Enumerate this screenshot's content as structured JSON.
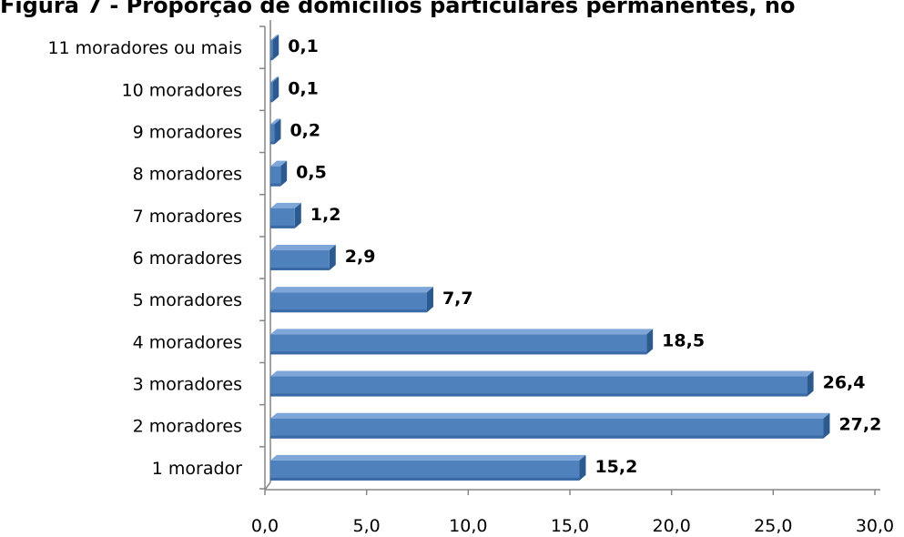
{
  "chart_data": {
    "type": "bar",
    "orientation": "horizontal",
    "title": "Figura 7 - Proporção de domicílios particulares permanentes, no",
    "categories": [
      "1 morador",
      "2 moradores",
      "3 moradores",
      "4 moradores",
      "5 moradores",
      "6 moradores",
      "7 moradores",
      "8 moradores",
      "9 moradores",
      "10 moradores",
      "11 moradores ou mais"
    ],
    "values": [
      15.2,
      27.2,
      26.4,
      18.5,
      7.7,
      2.9,
      1.2,
      0.5,
      0.2,
      0.1,
      0.1
    ],
    "value_labels": [
      "15,2",
      "27,2",
      "26,4",
      "18,5",
      "7,7",
      "2,9",
      "1,2",
      "0,5",
      "0,2",
      "0,1",
      "0,1"
    ],
    "x_ticks": [
      0,
      5,
      10,
      15,
      20,
      25,
      30
    ],
    "x_tick_labels": [
      "0,0",
      "5,0",
      "10,0",
      "15,0",
      "20,0",
      "25,0",
      "30,0"
    ],
    "xlim": [
      0,
      30
    ],
    "grid": false,
    "legend": "none",
    "bar_color": "#4f81bd",
    "bar_dark_color": "#2c5a8f",
    "axis_color": "#868686"
  }
}
